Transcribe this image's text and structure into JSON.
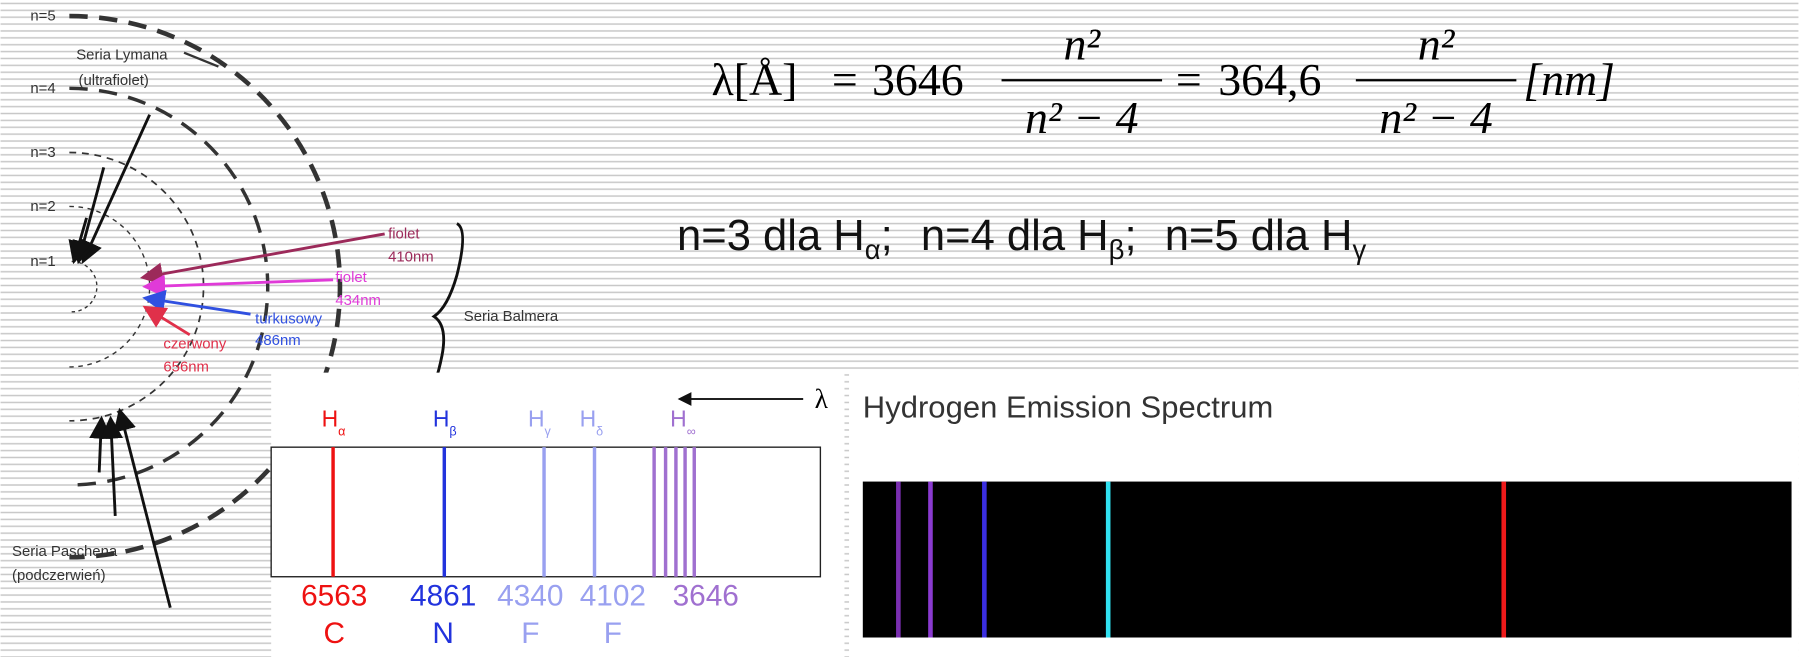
{
  "bohr": {
    "levels": [
      "n=5",
      "n=4",
      "n=3",
      "n=2",
      "n=1"
    ],
    "lyman": [
      "Seria Lymana",
      "(ultrafiolet)"
    ],
    "balmer_lines": [
      {
        "name": "fiolet",
        "wavelength": "410nm"
      },
      {
        "name": "fiolet",
        "wavelength": "434nm"
      },
      {
        "name": "turkusowy",
        "wavelength": "486nm"
      },
      {
        "name": "czerwony",
        "wavelength": "656nm"
      }
    ],
    "balmer": "Seria Balmera",
    "paschen": [
      "Seria Paschena",
      "(podczerwień)"
    ]
  },
  "formula": {
    "lhs": "λ[Å]",
    "equals": "=",
    "constant_a": "3646",
    "numerator": "n²",
    "denominator": "n² − 4",
    "constant_b": "364,6",
    "unit": "[nm]"
  },
  "notes": [
    {
      "text": "n=3 dla H",
      "sub": "α",
      "separator": ";"
    },
    {
      "text": "n=4 dla H",
      "sub": "β",
      "separator": ";"
    },
    {
      "text": "n=5 dla H",
      "sub": "γ"
    }
  ],
  "spectrum": {
    "axis": "λ",
    "lines": [
      {
        "symbol": "H",
        "sub": "α",
        "wavelength": "6563",
        "letter": "C"
      },
      {
        "symbol": "H",
        "sub": "β",
        "wavelength": "4861",
        "letter": "N"
      },
      {
        "symbol": "H",
        "sub": "γ",
        "wavelength": "4340",
        "letter": "F"
      },
      {
        "symbol": "H",
        "sub": "δ",
        "wavelength": "4102",
        "letter": "F"
      },
      {
        "symbol": "H",
        "sub": "∞",
        "wavelength": "3646"
      }
    ]
  },
  "emission": {
    "title": "Hydrogen Emission Spectrum"
  }
}
